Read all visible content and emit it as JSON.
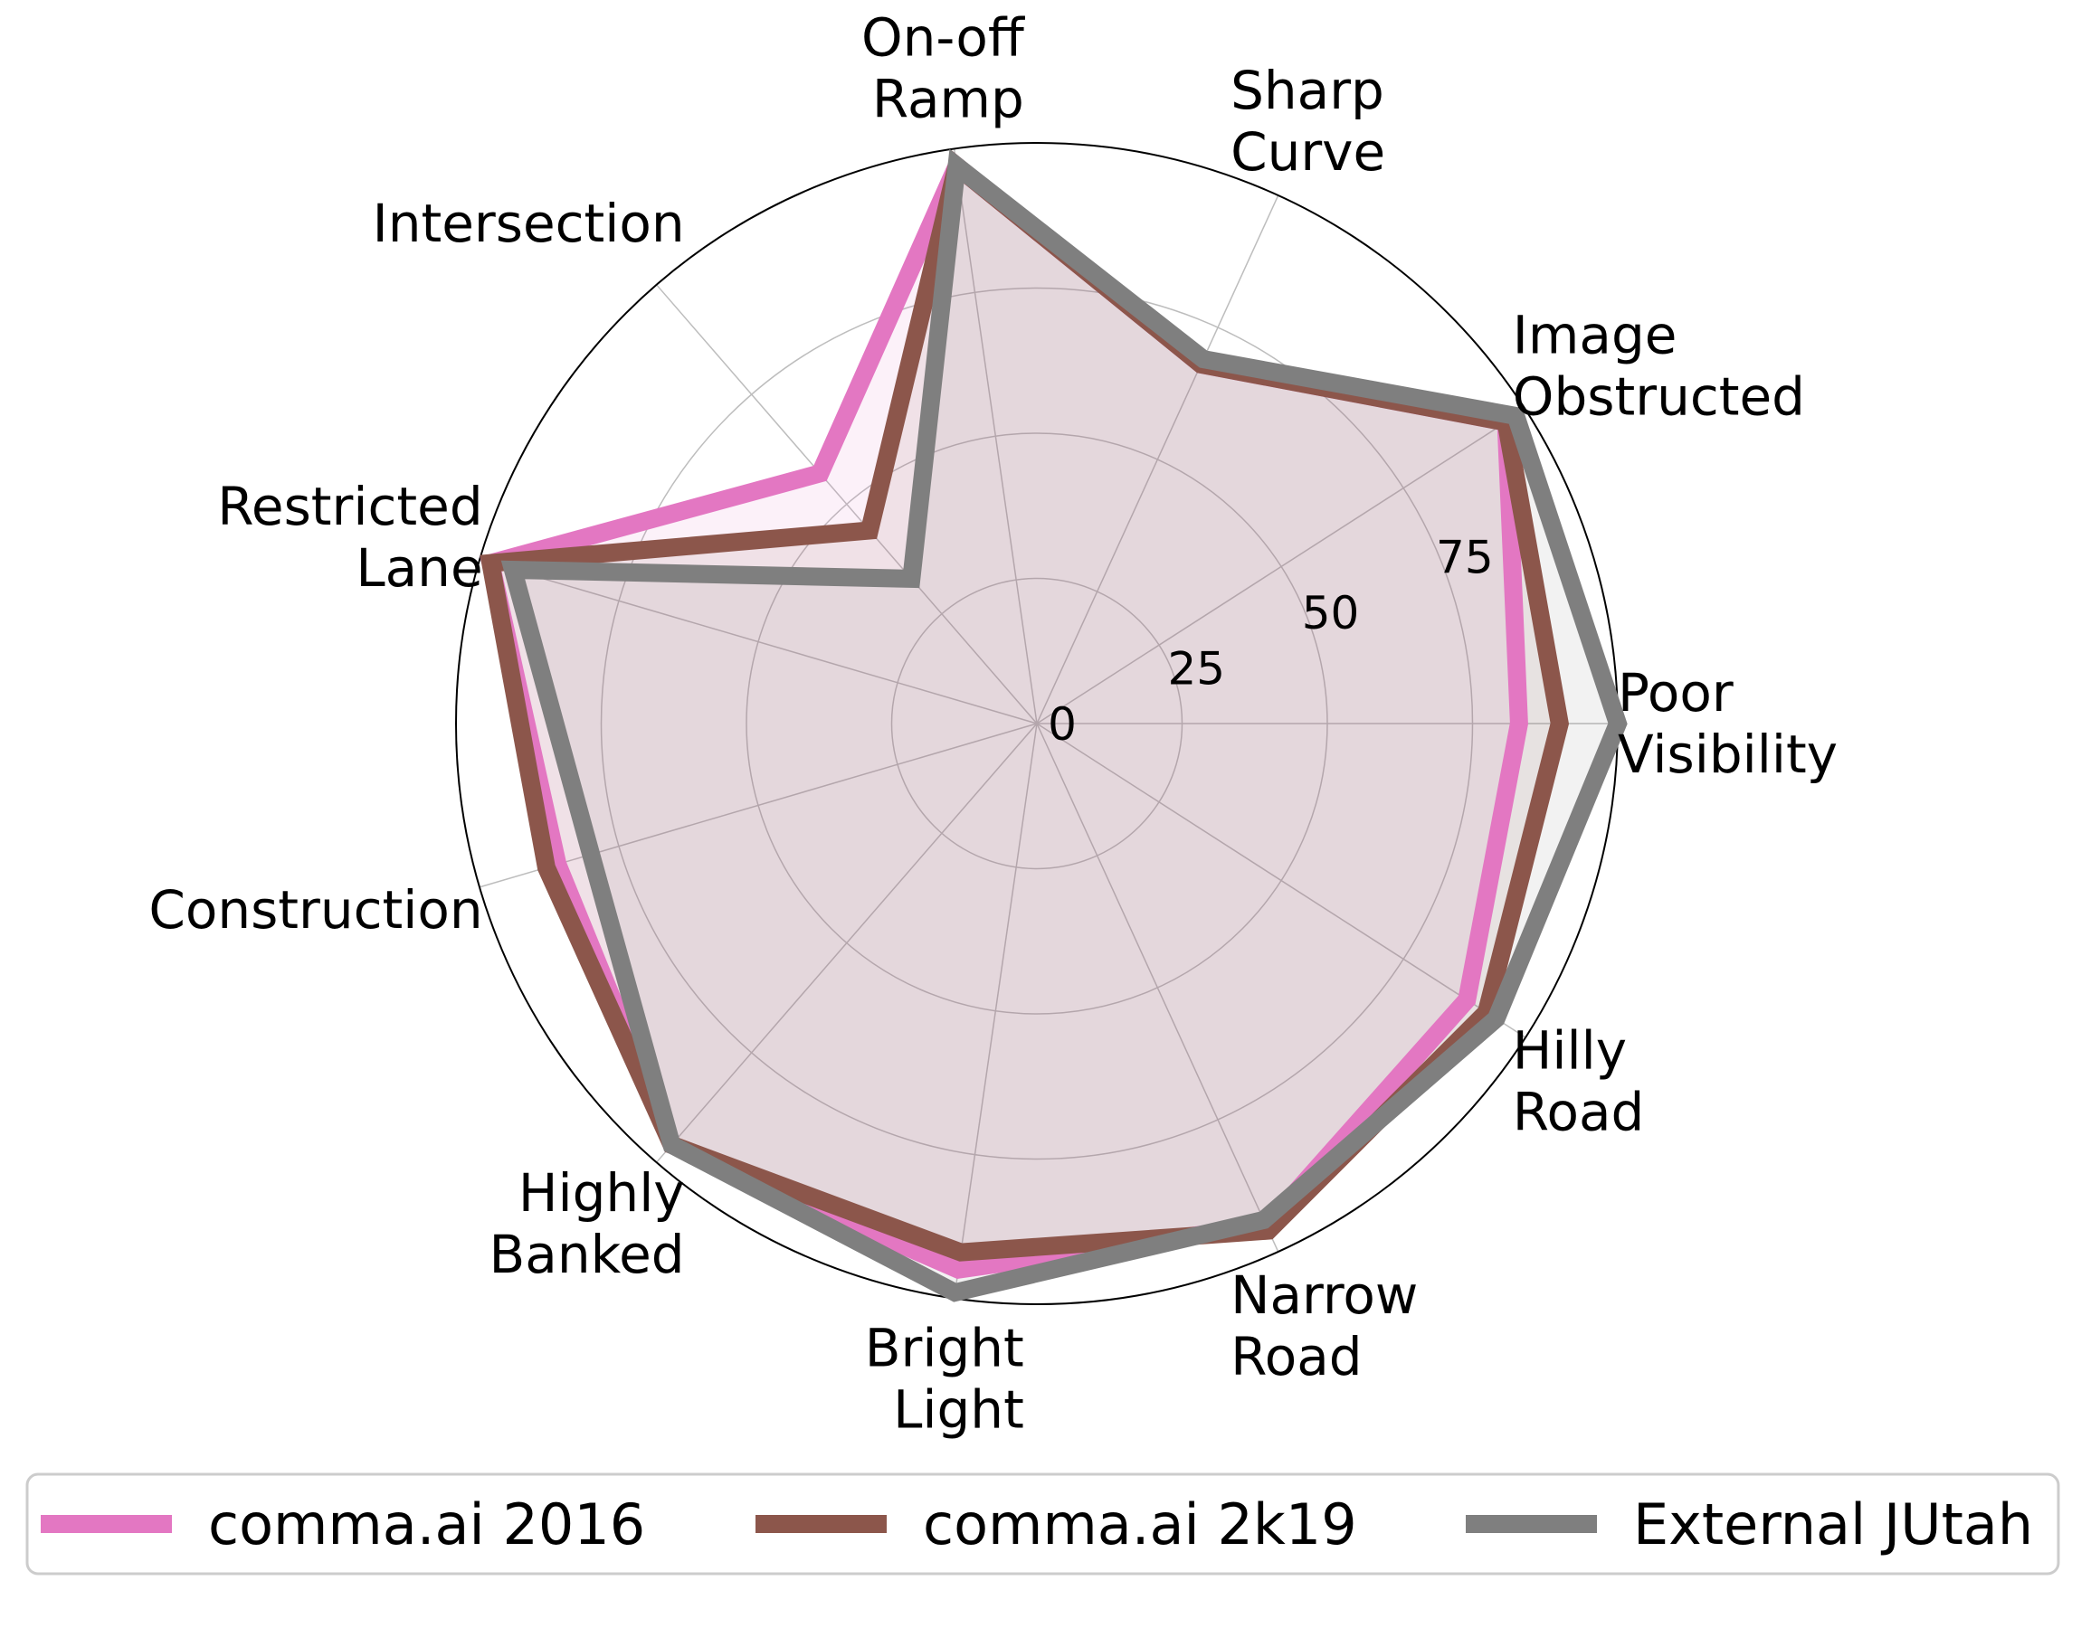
{
  "chart_data": {
    "type": "radar",
    "title": "",
    "categories": [
      [
        "Poor",
        "Visibility"
      ],
      [
        "Image",
        "Obstructed"
      ],
      [
        "Sharp",
        "Curve"
      ],
      [
        "On-off",
        "Ramp"
      ],
      [
        "Intersection"
      ],
      [
        "Restricted",
        "Lane"
      ],
      [
        "Construction"
      ],
      [
        "Highly",
        "Banked"
      ],
      [
        "Bright",
        "Light"
      ],
      [
        "Narrow",
        "Road"
      ],
      [
        "Hilly",
        "Road"
      ]
    ],
    "radial_ticks": [
      "0",
      "25",
      "50",
      "75"
    ],
    "rlim": [
      0,
      100
    ],
    "grid": true,
    "legend_position": "bottom",
    "series": [
      {
        "name": "comma.ai 2016",
        "color": "#e377c2",
        "values": [
          83,
          96,
          68,
          97,
          57,
          98,
          86,
          96,
          95,
          95,
          88
        ]
      },
      {
        "name": "comma.ai 2k19",
        "color": "#8c564b",
        "values": [
          90,
          96,
          68,
          97,
          44,
          98,
          88,
          96,
          92,
          96,
          92
        ]
      },
      {
        "name": "External JUtah",
        "color": "#7f7f7f",
        "values": [
          100,
          98,
          69,
          97,
          33,
          94,
          80,
          96,
          99,
          94,
          94
        ]
      }
    ]
  }
}
